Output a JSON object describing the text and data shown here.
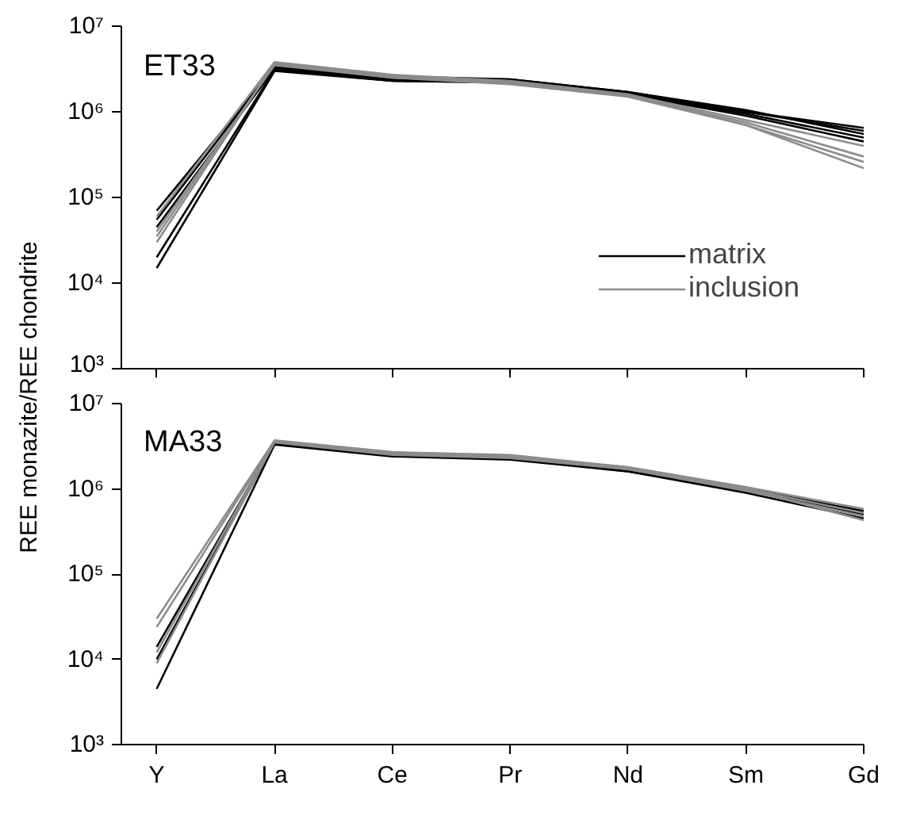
{
  "chart_data": [
    {
      "type": "line",
      "title": "ET33",
      "ylabel": "REE monazite/REE chondrite",
      "categories": [
        null,
        null,
        null,
        null,
        null,
        null,
        null
      ],
      "log": "y",
      "ylim": [
        1000,
        10000000
      ],
      "yticks": [
        {
          "value": 1000,
          "label": "10³"
        },
        {
          "value": 10000,
          "label": "10⁴"
        },
        {
          "value": 100000,
          "label": "10⁵"
        },
        {
          "value": 1000000,
          "label": "10⁶"
        },
        {
          "value": 10000000,
          "label": "10⁷"
        }
      ],
      "legend": "bottom right",
      "grid": false,
      "series": [
        {
          "name": "matrix",
          "color": "#000000",
          "values": [
            45000,
            3200000,
            2400000,
            2300000,
            1650000,
            1000000,
            600000
          ]
        },
        {
          "color": "#000000",
          "values": [
            70000,
            3300000,
            2500000,
            2400000,
            1700000,
            1050000,
            550000
          ]
        },
        {
          "color": "#000000",
          "values": [
            20000,
            3100000,
            2300000,
            2200000,
            1600000,
            950000,
            500000
          ]
        },
        {
          "color": "#000000",
          "values": [
            15000,
            3000000,
            2300000,
            2200000,
            1600000,
            900000,
            450000
          ]
        },
        {
          "color": "#000000",
          "values": [
            55000,
            3400000,
            2600000,
            2400000,
            1700000,
            1000000,
            650000
          ]
        },
        {
          "name": "inclusion",
          "color": "#8c8c8c",
          "values": [
            30000,
            3700000,
            2600000,
            2200000,
            1550000,
            750000,
            300000
          ]
        },
        {
          "color": "#8c8c8c",
          "values": [
            35000,
            3600000,
            2500000,
            2100000,
            1500000,
            700000,
            220000
          ]
        },
        {
          "color": "#8c8c8c",
          "values": [
            40000,
            3500000,
            2500000,
            2200000,
            1600000,
            800000,
            400000
          ]
        },
        {
          "color": "#8c8c8c",
          "values": [
            60000,
            3800000,
            2700000,
            2300000,
            1600000,
            700000,
            260000
          ]
        }
      ]
    },
    {
      "type": "line",
      "title": "MA33",
      "categories": [
        "Y",
        "La",
        "Ce",
        "Pr",
        "Nd",
        "Sm",
        "Gd"
      ],
      "log": "y",
      "ylim": [
        1000,
        10000000
      ],
      "yticks": [
        {
          "value": 1000,
          "label": "10³"
        },
        {
          "value": 10000,
          "label": "10⁴"
        },
        {
          "value": 100000,
          "label": "10⁵"
        },
        {
          "value": 1000000,
          "label": "10⁶"
        },
        {
          "value": 10000000,
          "label": "10⁷"
        }
      ],
      "grid": false,
      "series": [
        {
          "color": "#000000",
          "values": [
            4500,
            3300000,
            2400000,
            2200000,
            1600000,
            900000,
            450000
          ]
        },
        {
          "color": "#000000",
          "values": [
            10000,
            3400000,
            2500000,
            2300000,
            1700000,
            1000000,
            550000
          ]
        },
        {
          "color": "#000000",
          "values": [
            14000,
            3500000,
            2600000,
            2300000,
            1600000,
            950000,
            500000
          ]
        },
        {
          "color": "#8c8c8c",
          "values": [
            30000,
            3700000,
            2700000,
            2500000,
            1800000,
            1050000,
            580000
          ]
        },
        {
          "color": "#8c8c8c",
          "values": [
            24000,
            3600000,
            2600000,
            2400000,
            1700000,
            1000000,
            430000
          ]
        },
        {
          "color": "#8c8c8c",
          "values": [
            9000,
            3500000,
            2500000,
            2300000,
            1700000,
            950000,
            480000
          ]
        },
        {
          "color": "#8c8c8c",
          "values": [
            12000,
            3600000,
            2600000,
            2400000,
            1750000,
            1000000,
            520000
          ]
        }
      ]
    }
  ]
}
